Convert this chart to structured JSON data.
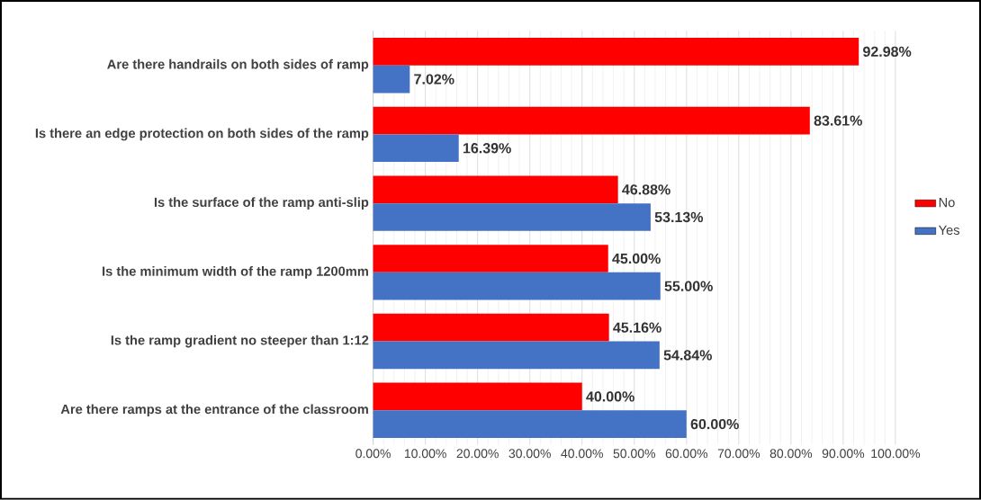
{
  "chart_data": {
    "type": "bar",
    "orientation": "horizontal",
    "categories": [
      "Are there handrails on both sides of ramp",
      "Is there an edge protection on both sides of the ramp",
      "Is the surface of the ramp anti-slip",
      "Is the minimum width of the ramp 1200mm",
      "Is the ramp gradient no steeper than 1:12",
      "Are there ramps at the entrance of the classroom"
    ],
    "series": [
      {
        "name": "No",
        "color": "#ff0000",
        "values": [
          92.98,
          83.61,
          46.88,
          45.0,
          45.16,
          40.0
        ],
        "value_labels": [
          "92.98%",
          "83.61%",
          "46.88%",
          "45.00%",
          "45.16%",
          "40.00%"
        ]
      },
      {
        "name": "Yes",
        "color": "#4472c4",
        "values": [
          7.02,
          16.39,
          53.13,
          55.0,
          54.84,
          60.0
        ],
        "value_labels": [
          "7.02%",
          "16.39%",
          "53.13%",
          "55.00%",
          "54.84%",
          "60.00%"
        ]
      }
    ],
    "xlim": [
      0,
      100
    ],
    "xticks": [
      {
        "value": 0,
        "label": "0.00%"
      },
      {
        "value": 10,
        "label": "10.00%"
      },
      {
        "value": 20,
        "label": "20.00%"
      },
      {
        "value": 30,
        "label": "30.00%"
      },
      {
        "value": 40,
        "label": "40.00%"
      },
      {
        "value": 50,
        "label": "50.00%"
      },
      {
        "value": 60,
        "label": "60.00%"
      },
      {
        "value": 70,
        "label": "70.00%"
      },
      {
        "value": 80,
        "label": "80.00%"
      },
      {
        "value": 90,
        "label": "90.00%"
      },
      {
        "value": 100,
        "label": "100.00%"
      }
    ],
    "grid": "x",
    "legend": "right"
  }
}
